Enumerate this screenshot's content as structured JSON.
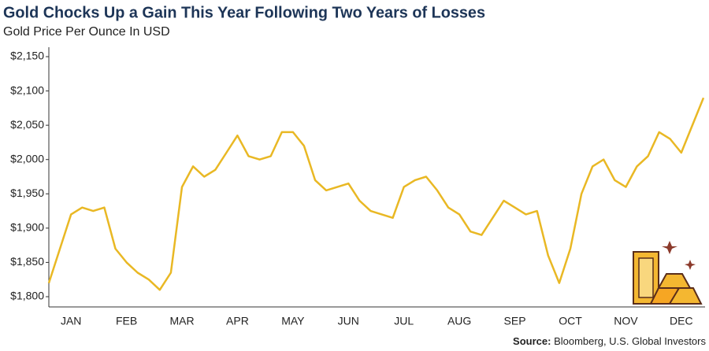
{
  "chart_data": {
    "type": "line",
    "title": "Gold Chocks Up a Gain This Year Following Two Years of Losses",
    "subtitle": "Gold Price Per Ounce In USD",
    "source_label": "Source:",
    "source": "Bloomberg, U.S. Global Investors",
    "categories": [
      null,
      null,
      "JAN",
      null,
      null,
      null,
      null,
      "FEB",
      null,
      null,
      null,
      null,
      "MAR",
      null,
      null,
      null,
      null,
      "APR",
      null,
      null,
      null,
      null,
      "MAY",
      null,
      null,
      null,
      null,
      "JUN",
      null,
      null,
      null,
      null,
      "JUL",
      null,
      null,
      null,
      null,
      "AUG",
      null,
      null,
      null,
      null,
      "SEP",
      null,
      null,
      null,
      null,
      "OCT",
      null,
      null,
      null,
      null,
      "NOV",
      null,
      null,
      null,
      null,
      "DEC",
      null,
      null
    ],
    "series": [
      {
        "name": "Gold",
        "color": "#e9b824",
        "values": [
          1820,
          1870,
          1920,
          1930,
          1925,
          1930,
          1870,
          1850,
          1835,
          1825,
          1810,
          1835,
          1960,
          1990,
          1975,
          1985,
          2010,
          2035,
          2005,
          2000,
          2005,
          2040,
          2040,
          2020,
          1970,
          1955,
          1960,
          1965,
          1940,
          1925,
          1920,
          1915,
          1960,
          1970,
          1975,
          1955,
          1930,
          1920,
          1895,
          1890,
          1915,
          1940,
          1930,
          1920,
          1925,
          1860,
          1820,
          1870,
          1950,
          1990,
          2000,
          1970,
          1960,
          1990,
          2005,
          2040,
          2030,
          2010,
          2050,
          2090
        ]
      }
    ],
    "ylim": [
      1795,
      2160
    ],
    "yticks": [
      {
        "value": 1800,
        "label": "$1,800"
      },
      {
        "value": 1850,
        "label": "$1,850"
      },
      {
        "value": 1900,
        "label": "$1,900"
      },
      {
        "value": 1950,
        "label": "$1,950"
      },
      {
        "value": 2000,
        "label": "$2,000"
      },
      {
        "value": 2050,
        "label": "$2,050"
      },
      {
        "value": 2100,
        "label": "$2,100"
      },
      {
        "value": 2150,
        "label": "$2,150"
      }
    ]
  }
}
